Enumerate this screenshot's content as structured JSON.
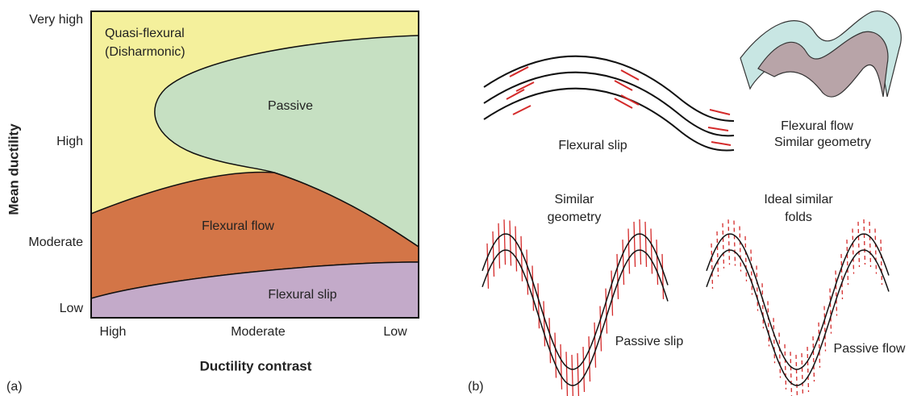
{
  "panel_a": {
    "label": "(a)",
    "y_axis": {
      "title": "Mean ductility",
      "ticks": [
        "Very high",
        "High",
        "Moderate",
        "Low"
      ]
    },
    "x_axis": {
      "title": "Ductility contrast",
      "ticks": [
        "High",
        "Moderate",
        "Low"
      ]
    },
    "regions": {
      "quasi_flexural": [
        "Quasi-flexural",
        "(Disharmonic)"
      ],
      "passive": "Passive",
      "flexural_flow": "Flexural flow",
      "flexural_slip": "Flexural slip"
    }
  },
  "panel_b": {
    "label": "(b)",
    "flexural_slip": "Flexural slip",
    "flexural_flow": [
      "Flexural flow",
      "Similar geometry"
    ],
    "similar_geometry": [
      "Similar",
      "geometry"
    ],
    "passive_slip": "Passive slip",
    "ideal_similar": [
      "Ideal similar",
      "folds"
    ],
    "passive_flow": "Passive flow"
  }
}
